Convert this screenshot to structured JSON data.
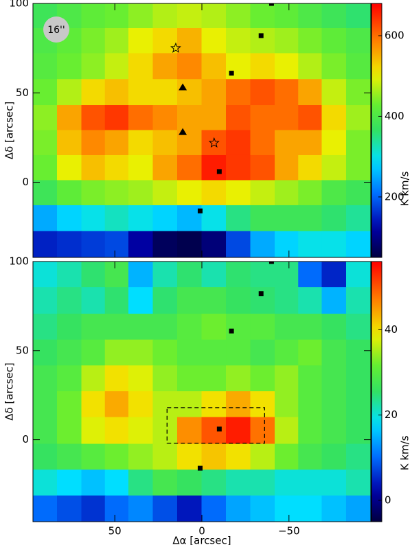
{
  "chart_data": [
    {
      "type": "heatmap",
      "beam_label": "16''",
      "ylabel": "Δδ [arcsec]",
      "colorbar_label": "K km/s",
      "xlim": [
        97,
        -97
      ],
      "ylim": [
        -42,
        100
      ],
      "xticks": [
        50,
        0,
        {
          "value": -50,
          "label": "−50"
        }
      ],
      "xtick_labels": false,
      "yticks": [
        100,
        50,
        0
      ],
      "zlim": [
        50,
        680
      ],
      "zticks": [
        200,
        400,
        600
      ],
      "x": [
        90,
        76,
        62,
        49,
        35,
        21,
        7,
        -7,
        -21,
        -35,
        -49,
        -62,
        -76,
        -90
      ],
      "y": [
        93,
        79,
        65,
        50,
        36,
        22,
        8,
        -6,
        -20,
        -35
      ],
      "values": [
        [
          380,
          400,
          420,
          430,
          450,
          470,
          480,
          470,
          450,
          430,
          420,
          400,
          380,
          360
        ],
        [
          400,
          420,
          440,
          460,
          500,
          520,
          550,
          500,
          480,
          470,
          460,
          440,
          420,
          400
        ],
        [
          410,
          430,
          450,
          480,
          520,
          560,
          580,
          540,
          500,
          520,
          500,
          470,
          440,
          410
        ],
        [
          430,
          470,
          520,
          540,
          520,
          520,
          540,
          560,
          600,
          620,
          600,
          560,
          480,
          440
        ],
        [
          450,
          560,
          620,
          640,
          600,
          580,
          560,
          560,
          620,
          600,
          600,
          620,
          520,
          460
        ],
        [
          440,
          540,
          580,
          560,
          520,
          540,
          560,
          620,
          640,
          600,
          560,
          560,
          500,
          440
        ],
        [
          430,
          500,
          540,
          520,
          500,
          560,
          600,
          660,
          640,
          620,
          560,
          520,
          480,
          440
        ],
        [
          380,
          420,
          440,
          450,
          460,
          480,
          500,
          520,
          500,
          480,
          460,
          440,
          400,
          380
        ],
        [
          250,
          280,
          300,
          320,
          300,
          280,
          260,
          300,
          350,
          380,
          380,
          380,
          360,
          340
        ],
        [
          150,
          160,
          170,
          180,
          120,
          70,
          60,
          90,
          180,
          250,
          280,
          300,
          300,
          280
        ]
      ],
      "markers": [
        {
          "shape": "square",
          "x": [
            -40,
            -34,
            -17,
            -10,
            1
          ],
          "y": [
            100,
            82,
            61,
            6,
            -16
          ]
        },
        {
          "shape": "triangle",
          "x": [
            11,
            11
          ],
          "y": [
            53,
            28
          ]
        },
        {
          "shape": "star",
          "x": [
            15,
            -7
          ],
          "y": [
            75,
            22
          ]
        }
      ]
    },
    {
      "type": "heatmap",
      "ylabel": "Δδ [arcsec]",
      "xlabel": "Δα [arcsec]",
      "colorbar_label": "K km/s",
      "xlim": [
        97,
        -97
      ],
      "ylim": [
        -46,
        100
      ],
      "xticks": [
        50,
        0,
        {
          "value": -50,
          "label": "−50"
        }
      ],
      "xtick_labels": true,
      "yticks": [
        100,
        50,
        0
      ],
      "zlim": [
        -5,
        56
      ],
      "zticks": [
        0,
        20,
        40
      ],
      "x": [
        90,
        76,
        62,
        49,
        35,
        21,
        7,
        -7,
        -21,
        -35,
        -49,
        -62,
        -76,
        -90
      ],
      "y": [
        93,
        78,
        63,
        49,
        34,
        20,
        5,
        -10,
        -24,
        -39
      ],
      "values": [
        [
          20,
          22,
          25,
          28,
          15,
          22,
          25,
          22,
          25,
          24,
          24,
          10,
          5,
          20
        ],
        [
          22,
          24,
          22,
          25,
          18,
          25,
          28,
          28,
          26,
          25,
          24,
          22,
          15,
          22
        ],
        [
          24,
          26,
          28,
          28,
          28,
          28,
          30,
          32,
          30,
          30,
          28,
          28,
          26,
          24
        ],
        [
          26,
          28,
          30,
          34,
          34,
          32,
          30,
          30,
          30,
          28,
          30,
          32,
          28,
          26
        ],
        [
          28,
          30,
          36,
          40,
          38,
          34,
          32,
          32,
          34,
          32,
          34,
          30,
          28,
          26
        ],
        [
          28,
          32,
          40,
          44,
          40,
          36,
          36,
          40,
          44,
          40,
          34,
          30,
          28,
          26
        ],
        [
          28,
          32,
          38,
          40,
          38,
          36,
          46,
          50,
          54,
          48,
          36,
          30,
          28,
          26
        ],
        [
          26,
          28,
          30,
          32,
          34,
          36,
          40,
          42,
          40,
          36,
          32,
          28,
          26,
          24
        ],
        [
          20,
          18,
          16,
          18,
          24,
          28,
          26,
          24,
          22,
          22,
          20,
          20,
          20,
          22
        ],
        [
          10,
          8,
          6,
          10,
          12,
          8,
          4,
          10,
          14,
          16,
          18,
          18,
          16,
          14
        ]
      ],
      "box": {
        "x": [
          20,
          -36
        ],
        "y": [
          -2,
          18
        ]
      },
      "markers": [
        {
          "shape": "square",
          "x": [
            -40,
            -34,
            -17,
            -10,
            1
          ],
          "y": [
            100,
            82,
            61,
            6,
            -16
          ]
        }
      ]
    }
  ]
}
